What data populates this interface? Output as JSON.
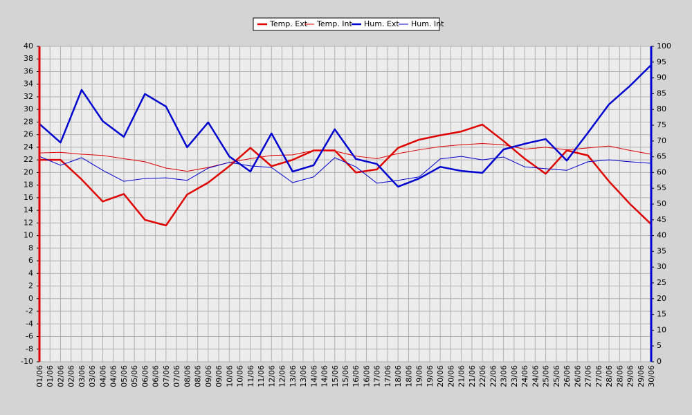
{
  "chart_data": {
    "type": "line",
    "x": [
      1,
      2,
      3,
      4,
      5,
      6,
      7,
      8,
      9,
      10,
      11,
      12,
      13,
      14,
      15,
      16,
      17,
      18,
      19,
      20,
      21,
      22,
      23,
      24,
      25,
      26,
      27,
      28,
      29,
      30
    ],
    "xlim": [
      1,
      30
    ],
    "xticks": [
      {
        "value": 1,
        "label": "01/06"
      },
      {
        "value": 1.5,
        "label": "01/06"
      },
      {
        "value": 2,
        "label": "02/06"
      },
      {
        "value": 2.5,
        "label": "02/06"
      },
      {
        "value": 3,
        "label": "03/06"
      },
      {
        "value": 3.5,
        "label": "03/06"
      },
      {
        "value": 4,
        "label": "04/06"
      },
      {
        "value": 4.5,
        "label": "04/06"
      },
      {
        "value": 5,
        "label": "05/06"
      },
      {
        "value": 5.5,
        "label": "05/06"
      },
      {
        "value": 6,
        "label": "06/06"
      },
      {
        "value": 6.5,
        "label": "06/06"
      },
      {
        "value": 7,
        "label": "07/06"
      },
      {
        "value": 7.5,
        "label": "07/06"
      },
      {
        "value": 8,
        "label": "08/06"
      },
      {
        "value": 8.5,
        "label": "08/06"
      },
      {
        "value": 9,
        "label": "09/06"
      },
      {
        "value": 9.5,
        "label": "09/06"
      },
      {
        "value": 10,
        "label": "10/06"
      },
      {
        "value": 10.5,
        "label": "10/06"
      },
      {
        "value": 11,
        "label": "11/06"
      },
      {
        "value": 11.5,
        "label": "11/06"
      },
      {
        "value": 12,
        "label": "12/06"
      },
      {
        "value": 12.5,
        "label": "12/06"
      },
      {
        "value": 13,
        "label": "13/06"
      },
      {
        "value": 13.5,
        "label": "13/06"
      },
      {
        "value": 14,
        "label": "14/06"
      },
      {
        "value": 14.5,
        "label": "14/06"
      },
      {
        "value": 15,
        "label": "15/06"
      },
      {
        "value": 15.5,
        "label": "15/06"
      },
      {
        "value": 16,
        "label": "16/06"
      },
      {
        "value": 16.5,
        "label": "16/06"
      },
      {
        "value": 17,
        "label": "17/06"
      },
      {
        "value": 17.5,
        "label": "17/06"
      },
      {
        "value": 18,
        "label": "18/06"
      },
      {
        "value": 18.5,
        "label": "18/06"
      },
      {
        "value": 19,
        "label": "19/06"
      },
      {
        "value": 19.5,
        "label": "19/06"
      },
      {
        "value": 20,
        "label": "20/06"
      },
      {
        "value": 20.5,
        "label": "20/06"
      },
      {
        "value": 21,
        "label": "21/06"
      },
      {
        "value": 21.5,
        "label": "21/06"
      },
      {
        "value": 22,
        "label": "22/06"
      },
      {
        "value": 22.5,
        "label": "22/06"
      },
      {
        "value": 23,
        "label": "23/06"
      },
      {
        "value": 23.5,
        "label": "23/06"
      },
      {
        "value": 24,
        "label": "24/06"
      },
      {
        "value": 24.5,
        "label": "24/06"
      },
      {
        "value": 25,
        "label": "25/06"
      },
      {
        "value": 25.5,
        "label": "25/06"
      },
      {
        "value": 26,
        "label": "26/06"
      },
      {
        "value": 26.5,
        "label": "26/06"
      },
      {
        "value": 27,
        "label": "27/06"
      },
      {
        "value": 27.5,
        "label": "27/06"
      },
      {
        "value": 28,
        "label": "28/06"
      },
      {
        "value": 28.5,
        "label": "28/06"
      },
      {
        "value": 29,
        "label": "29/06"
      },
      {
        "value": 29.5,
        "label": "29/06"
      },
      {
        "value": 30,
        "label": "30/06"
      }
    ],
    "ylim": [
      -10,
      40
    ],
    "yticks": [
      -10,
      -8,
      -6,
      -4,
      -2,
      0,
      2,
      4,
      6,
      8,
      10,
      12,
      14,
      16,
      18,
      20,
      22,
      24,
      26,
      28,
      30,
      32,
      34,
      36,
      38,
      40
    ],
    "y2lim": [
      0,
      100
    ],
    "y2ticks": [
      0,
      5,
      10,
      15,
      20,
      25,
      30,
      35,
      40,
      45,
      50,
      55,
      60,
      65,
      70,
      75,
      80,
      85,
      90,
      95,
      100
    ],
    "grid": true,
    "legend": "top",
    "series": [
      {
        "name": "Temp. Ext",
        "color": "#e00000",
        "linewidth": 2.5,
        "axis": "y",
        "values": [
          22.0,
          22.0,
          18.9,
          15.4,
          16.6,
          12.5,
          11.6,
          16.5,
          18.4,
          21.0,
          23.9,
          21.0,
          22.0,
          23.5,
          23.5,
          20.0,
          20.5,
          23.9,
          25.2,
          25.9,
          26.5,
          27.6,
          25.0,
          22.2,
          19.8,
          23.5,
          22.7,
          18.6,
          15.0,
          11.8
        ]
      },
      {
        "name": "Temp. Int",
        "color": "#e00000",
        "linewidth": 1,
        "axis": "y",
        "values": [
          23.1,
          23.2,
          22.9,
          22.7,
          22.2,
          21.7,
          20.7,
          20.2,
          20.8,
          21.6,
          22.2,
          22.7,
          22.8,
          23.5,
          23.4,
          22.6,
          22.2,
          23.0,
          23.6,
          24.1,
          24.4,
          24.6,
          24.4,
          23.7,
          24.0,
          23.6,
          23.9,
          24.2,
          23.5,
          22.9
        ]
      },
      {
        "name": "Hum. Ext",
        "color": "#0000d0",
        "linewidth": 2.5,
        "axis": "y2",
        "values": [
          75.4,
          69.5,
          86.2,
          76.3,
          71.3,
          84.9,
          80.9,
          68.0,
          75.9,
          65.1,
          60.3,
          72.4,
          60.3,
          62.3,
          73.7,
          64.3,
          62.7,
          55.5,
          58.1,
          61.8,
          60.5,
          59.9,
          67.3,
          69.1,
          70.6,
          63.8,
          72.6,
          81.6,
          87.5,
          94.1
        ]
      },
      {
        "name": "Hum. Int",
        "color": "#0000d0",
        "linewidth": 1,
        "axis": "y2",
        "values": [
          65.1,
          62.3,
          64.7,
          60.7,
          57.2,
          58.1,
          58.3,
          57.5,
          61.4,
          63.2,
          62.1,
          61.6,
          56.8,
          58.6,
          64.7,
          61.8,
          56.6,
          57.5,
          58.6,
          64.3,
          65.1,
          64.0,
          64.9,
          61.8,
          61.2,
          60.7,
          63.4,
          64.0,
          63.4,
          62.9
        ]
      }
    ]
  }
}
